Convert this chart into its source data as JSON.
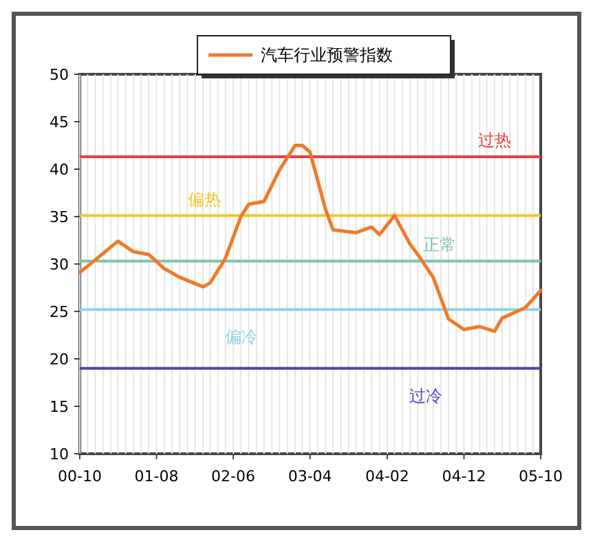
{
  "chart_data": {
    "type": "line",
    "x": [
      "2000-10",
      "2001-03",
      "2001-05",
      "2001-07",
      "2001-09",
      "2001-11",
      "2002-02",
      "2002-03",
      "2002-05",
      "2002-07",
      "2002-08",
      "2002-10",
      "2002-12",
      "2003-02",
      "2003-03",
      "2003-04",
      "2003-06",
      "2003-07",
      "2003-10",
      "2003-12",
      "2004-01",
      "2004-03",
      "2004-05",
      "2004-06",
      "2004-08",
      "2004-10",
      "2004-12",
      "2005-02",
      "2005-04",
      "2005-05",
      "2005-08",
      "2005-10"
    ],
    "series": [
      {
        "name": "汽车行业预警指数",
        "color": "#f07a28",
        "values": [
          29.1,
          32.4,
          31.3,
          31,
          29.5,
          28.6,
          27.6,
          28,
          30.6,
          35,
          36.3,
          36.6,
          39.9,
          42.5,
          42.5,
          41.8,
          35.8,
          33.6,
          33.3,
          33.9,
          33.1,
          35.1,
          32.1,
          31,
          28.6,
          24.2,
          23.1,
          23.4,
          22.9,
          24.3,
          25.4,
          27.2
        ]
      }
    ],
    "xlim": [
      "2000-10",
      "2005-10"
    ],
    "xticks": [
      {
        "value": "2000-10",
        "label": "00-10"
      },
      {
        "value": "2001-08",
        "label": "01-08"
      },
      {
        "value": "2002-06",
        "label": "02-06"
      },
      {
        "value": "2003-04",
        "label": "03-04"
      },
      {
        "value": "2004-02",
        "label": "04-02"
      },
      {
        "value": "2004-12",
        "label": "04-12"
      },
      {
        "value": "2005-10",
        "label": "05-10"
      }
    ],
    "ylim": [
      10,
      50
    ],
    "yticks": [
      10,
      15,
      20,
      25,
      30,
      35,
      40,
      45,
      50
    ],
    "ref_lines": [
      {
        "axis": "y",
        "value": 41.3,
        "label": "过热",
        "color": "#e8403a"
      },
      {
        "axis": "y",
        "value": 35.1,
        "label": "偏热",
        "color": "#f2c62a"
      },
      {
        "axis": "y",
        "value": 30.3,
        "label": "正常",
        "color": "#7cc7a8"
      },
      {
        "axis": "y",
        "value": 25.2,
        "label": "偏冷",
        "color": "#8fd3ec"
      },
      {
        "axis": "y",
        "value": 19,
        "label": "过冷",
        "color": "#5a3fb0"
      }
    ],
    "grid": "x",
    "legend": "top",
    "marker": "none",
    "line_style": "solid"
  }
}
